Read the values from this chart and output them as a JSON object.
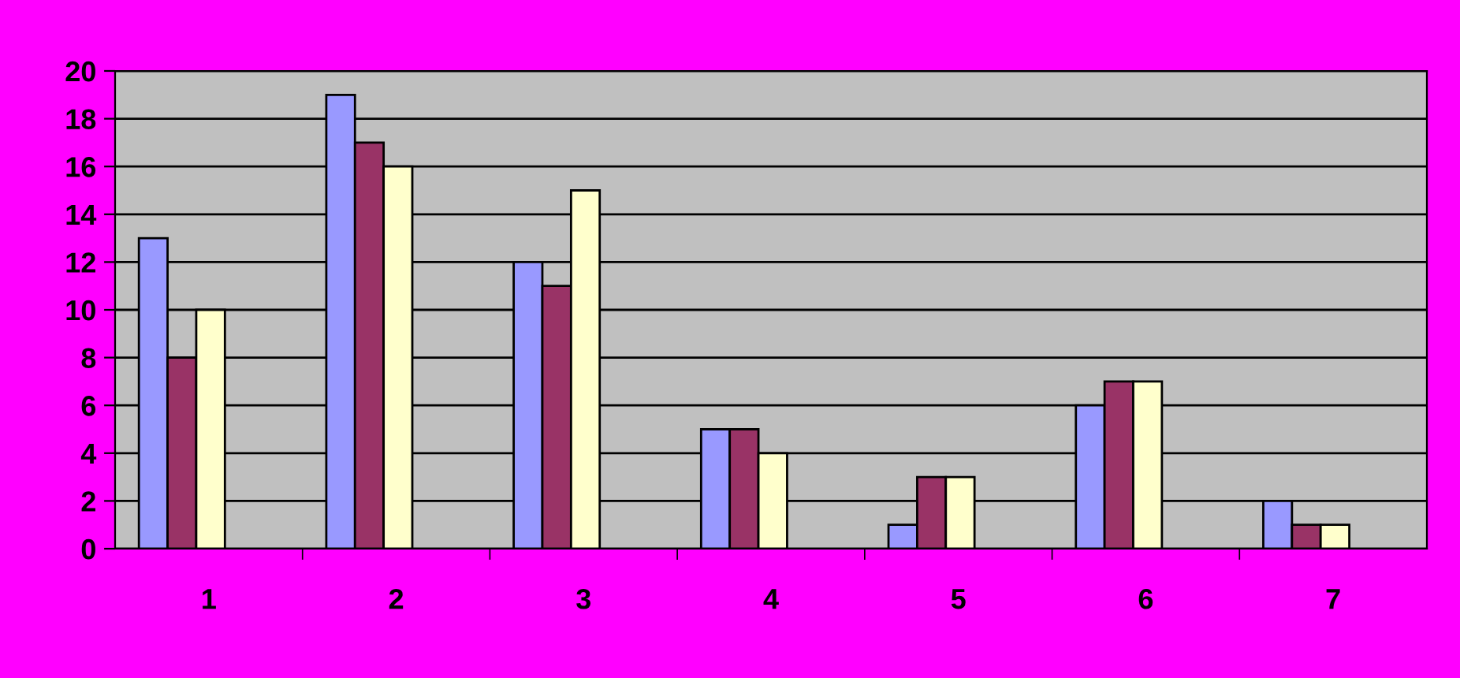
{
  "chart_data": {
    "type": "bar",
    "categories": [
      "1",
      "2",
      "3",
      "4",
      "5",
      "6",
      "7"
    ],
    "series": [
      {
        "color": "#9999ff",
        "values": [
          13,
          19,
          12,
          5,
          1,
          6,
          2
        ]
      },
      {
        "color": "#993366",
        "values": [
          8,
          17,
          11,
          5,
          3,
          7,
          1
        ]
      },
      {
        "color": "#ffffcc",
        "values": [
          10,
          16,
          15,
          4,
          3,
          7,
          1
        ]
      }
    ],
    "ylim": [
      0,
      20
    ],
    "yticks": [
      0,
      2,
      4,
      6,
      8,
      10,
      12,
      14,
      16,
      18,
      20
    ],
    "grid": "y"
  }
}
